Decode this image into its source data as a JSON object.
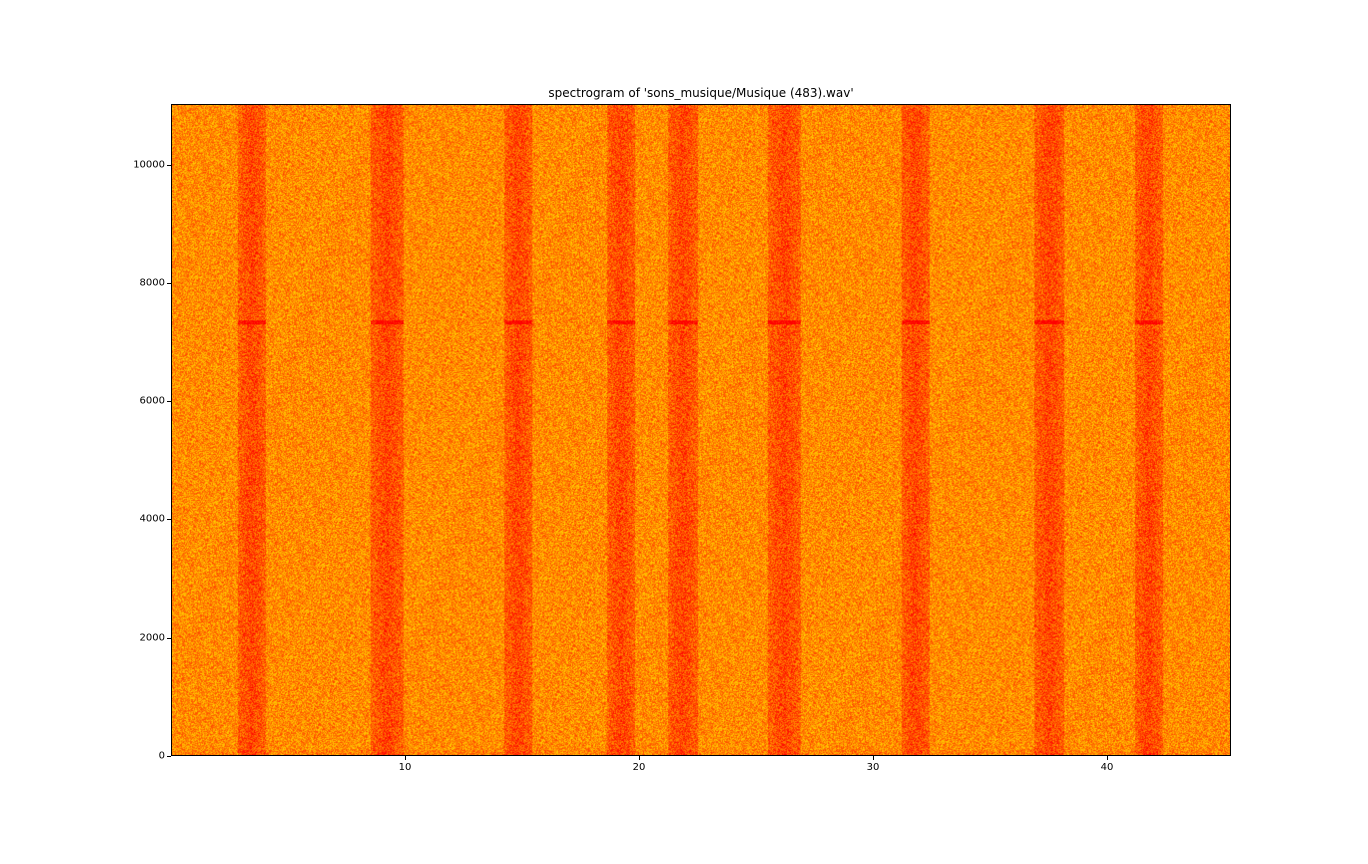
{
  "chart_data": {
    "type": "heatmap",
    "title": "spectrogram of 'sons_musique/Musique (483).wav'",
    "xlabel": "",
    "ylabel": "",
    "xlim": [
      0,
      45.3
    ],
    "ylim": [
      0,
      11025
    ],
    "x_ticks": [
      10,
      20,
      30,
      40
    ],
    "x_tick_labels": [
      "10",
      "20",
      "30",
      "40"
    ],
    "y_ticks": [
      0,
      2000,
      4000,
      6000,
      8000,
      10000
    ],
    "y_tick_labels": [
      "0",
      "2000",
      "4000",
      "6000",
      "8000",
      "10000"
    ],
    "colormap": "autumn",
    "colors": {
      "low": "#ff0000",
      "high": "#ffff00",
      "base": "#ff8c00"
    },
    "low_energy_bands_seconds": [
      [
        2.8,
        4.0
      ],
      [
        8.5,
        9.9
      ],
      [
        14.2,
        15.4
      ],
      [
        18.6,
        19.8
      ],
      [
        21.2,
        22.5
      ],
      [
        25.5,
        26.9
      ],
      [
        31.2,
        32.4
      ],
      [
        36.9,
        38.2
      ],
      [
        41.2,
        42.4
      ]
    ],
    "horizontal_line_hz": 7350
  }
}
